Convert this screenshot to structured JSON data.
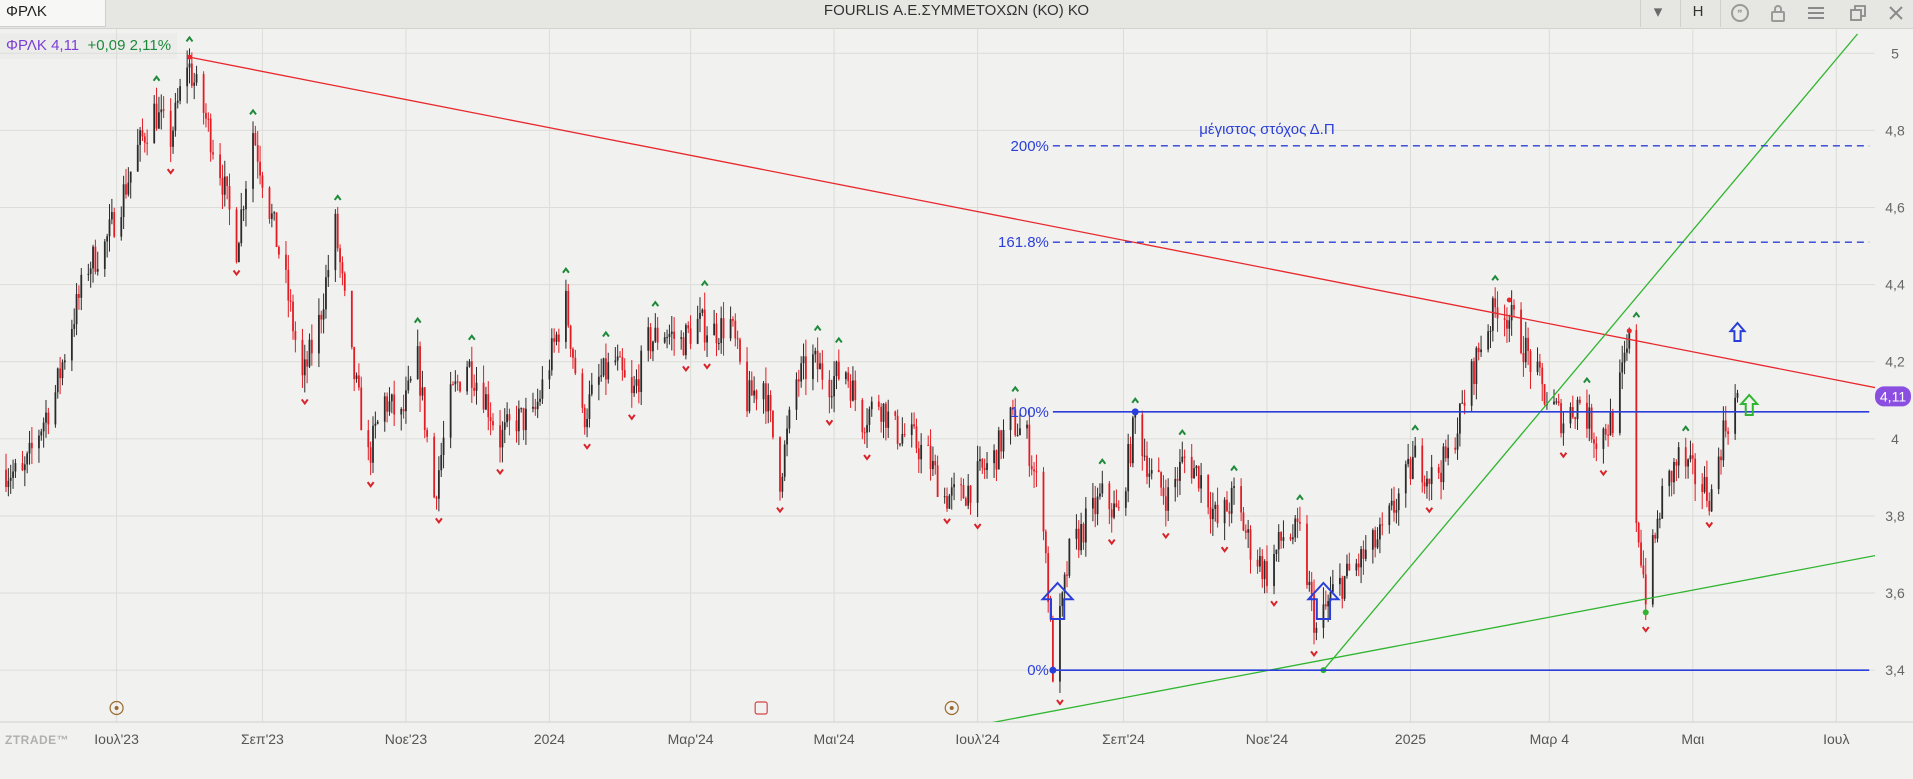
{
  "window": {
    "symbol": "ΦΡΛΚ",
    "title": "FOURLIS Α.Ε.ΣΥΜΜΕΤΟΧΩΝ (ΚΟ) ΚΟ",
    "toolbar_items": [
      {
        "name": "dropdown-icon",
        "glyph": "▾"
      },
      {
        "name": "interval-button",
        "glyph": "H"
      },
      {
        "name": "quote-icon",
        "glyph": "❞"
      },
      {
        "name": "lock-icon",
        "glyph": ""
      },
      {
        "name": "menu-icon",
        "glyph": "☰"
      },
      {
        "name": "restore-icon",
        "glyph": "❐"
      },
      {
        "name": "close-icon",
        "glyph": "✕"
      }
    ]
  },
  "quote": {
    "symbol": "ΦΡΛΚ",
    "last": "4,11",
    "change": "+0,09",
    "change_pct": "2,11%"
  },
  "watermark": "ZTRADE™",
  "chart_data": {
    "type": "candlestick",
    "x_start": "2023-05-15",
    "x_end": "2025-07-20",
    "ylim": [
      3.25,
      5.05
    ],
    "yticks": [
      {
        "value": 5.0,
        "label": "5"
      },
      {
        "value": 4.8,
        "label": "4,8"
      },
      {
        "value": 4.6,
        "label": "4,6"
      },
      {
        "value": 4.4,
        "label": "4,4"
      },
      {
        "value": 4.2,
        "label": "4,2"
      },
      {
        "value": 4.0,
        "label": "4"
      },
      {
        "value": 3.8,
        "label": "3,8"
      },
      {
        "value": 3.6,
        "label": "3,6"
      },
      {
        "value": 3.4,
        "label": "3,4"
      }
    ],
    "xticks": [
      {
        "date": "2023-07-01",
        "label": "Ιουλ'23"
      },
      {
        "date": "2023-09-01",
        "label": "Σεπ'23"
      },
      {
        "date": "2023-11-01",
        "label": "Νοε'23"
      },
      {
        "date": "2024-01-01",
        "label": "2024"
      },
      {
        "date": "2024-03-01",
        "label": "Μαρ'24"
      },
      {
        "date": "2024-05-01",
        "label": "Μαι'24"
      },
      {
        "date": "2024-07-01",
        "label": "Ιουλ'24"
      },
      {
        "date": "2024-09-01",
        "label": "Σεπ'24"
      },
      {
        "date": "2024-11-01",
        "label": "Νοε'24"
      },
      {
        "date": "2025-01-01",
        "label": "2025"
      },
      {
        "date": "2025-03-01",
        "label": "Μαρ 4"
      },
      {
        "date": "2025-05-01",
        "label": "Μαι"
      },
      {
        "date": "2025-07-01",
        "label": "Ιουλ"
      }
    ],
    "grid": true,
    "last_price": {
      "value": 4.11,
      "label": "4,11"
    },
    "price_path": [
      [
        "2023-05-15",
        3.92
      ],
      [
        "2023-05-22",
        3.9
      ],
      [
        "2023-05-29",
        4.02
      ],
      [
        "2023-06-05",
        4.12
      ],
      [
        "2023-06-12",
        4.3
      ],
      [
        "2023-06-19",
        4.45
      ],
      [
        "2023-06-26",
        4.5
      ],
      [
        "2023-07-03",
        4.62
      ],
      [
        "2023-07-10",
        4.75
      ],
      [
        "2023-07-17",
        4.85
      ],
      [
        "2023-07-24",
        4.78
      ],
      [
        "2023-07-31",
        4.98
      ],
      [
        "2023-08-07",
        4.85
      ],
      [
        "2023-08-14",
        4.7
      ],
      [
        "2023-08-21",
        4.5
      ],
      [
        "2023-08-28",
        4.8
      ],
      [
        "2023-09-04",
        4.6
      ],
      [
        "2023-09-11",
        4.4
      ],
      [
        "2023-09-18",
        4.15
      ],
      [
        "2023-09-25",
        4.3
      ],
      [
        "2023-10-02",
        4.55
      ],
      [
        "2023-10-09",
        4.2
      ],
      [
        "2023-10-16",
        3.95
      ],
      [
        "2023-10-23",
        4.1
      ],
      [
        "2023-10-30",
        4.05
      ],
      [
        "2023-11-06",
        4.2
      ],
      [
        "2023-11-13",
        3.85
      ],
      [
        "2023-11-20",
        4.1
      ],
      [
        "2023-11-27",
        4.2
      ],
      [
        "2023-12-04",
        4.12
      ],
      [
        "2023-12-11",
        4.0
      ],
      [
        "2023-12-18",
        4.05
      ],
      [
        "2023-12-25",
        4.05
      ],
      [
        "2024-01-01",
        4.2
      ],
      [
        "2024-01-08",
        4.35
      ],
      [
        "2024-01-15",
        4.05
      ],
      [
        "2024-01-22",
        4.15
      ],
      [
        "2024-01-29",
        4.2
      ],
      [
        "2024-02-05",
        4.1
      ],
      [
        "2024-02-12",
        4.25
      ],
      [
        "2024-02-19",
        4.28
      ],
      [
        "2024-02-26",
        4.25
      ],
      [
        "2024-03-04",
        4.3
      ],
      [
        "2024-03-11",
        4.28
      ],
      [
        "2024-03-18",
        4.3
      ],
      [
        "2024-03-25",
        4.1
      ],
      [
        "2024-04-01",
        4.15
      ],
      [
        "2024-04-08",
        3.9
      ],
      [
        "2024-04-15",
        4.15
      ],
      [
        "2024-04-22",
        4.2
      ],
      [
        "2024-04-29",
        4.15
      ],
      [
        "2024-05-06",
        4.18
      ],
      [
        "2024-05-13",
        4.05
      ],
      [
        "2024-05-20",
        4.1
      ],
      [
        "2024-05-27",
        4.02
      ],
      [
        "2024-06-03",
        4.0
      ],
      [
        "2024-06-10",
        3.95
      ],
      [
        "2024-06-17",
        3.85
      ],
      [
        "2024-06-24",
        3.85
      ],
      [
        "2024-07-01",
        3.9
      ],
      [
        "2024-07-08",
        3.95
      ],
      [
        "2024-07-15",
        4.05
      ],
      [
        "2024-07-22",
        4.0
      ],
      [
        "2024-07-29",
        3.8
      ],
      [
        "2024-08-02",
        3.4
      ],
      [
        "2024-08-09",
        3.7
      ],
      [
        "2024-08-16",
        3.78
      ],
      [
        "2024-08-23",
        3.85
      ],
      [
        "2024-08-30",
        3.8
      ],
      [
        "2024-09-06",
        4.05
      ],
      [
        "2024-09-13",
        3.9
      ],
      [
        "2024-09-20",
        3.85
      ],
      [
        "2024-09-27",
        3.95
      ],
      [
        "2024-10-04",
        3.9
      ],
      [
        "2024-10-11",
        3.78
      ],
      [
        "2024-10-18",
        3.85
      ],
      [
        "2024-10-25",
        3.72
      ],
      [
        "2024-11-01",
        3.65
      ],
      [
        "2024-11-08",
        3.75
      ],
      [
        "2024-11-15",
        3.75
      ],
      [
        "2024-11-22",
        3.5
      ],
      [
        "2024-11-29",
        3.6
      ],
      [
        "2024-12-06",
        3.65
      ],
      [
        "2024-12-13",
        3.7
      ],
      [
        "2024-12-20",
        3.75
      ],
      [
        "2024-12-27",
        3.85
      ],
      [
        "2025-01-03",
        3.95
      ],
      [
        "2025-01-10",
        3.9
      ],
      [
        "2025-01-17",
        3.95
      ],
      [
        "2025-01-24",
        4.1
      ],
      [
        "2025-01-31",
        4.25
      ],
      [
        "2025-02-07",
        4.35
      ],
      [
        "2025-02-14",
        4.3
      ],
      [
        "2025-02-21",
        4.2
      ],
      [
        "2025-02-28",
        4.1
      ],
      [
        "2025-03-07",
        4.05
      ],
      [
        "2025-03-14",
        4.1
      ],
      [
        "2025-03-21",
        4.0
      ],
      [
        "2025-03-28",
        4.05
      ],
      [
        "2025-04-04",
        4.25
      ],
      [
        "2025-04-07",
        3.8
      ],
      [
        "2025-04-11",
        3.6
      ],
      [
        "2025-04-18",
        3.85
      ],
      [
        "2025-04-25",
        3.95
      ],
      [
        "2025-05-02",
        3.9
      ],
      [
        "2025-05-09",
        3.85
      ],
      [
        "2025-05-14",
        4.02
      ],
      [
        "2025-05-20",
        4.11
      ]
    ],
    "trendlines": [
      {
        "name": "down-trendline",
        "color": "#e8282d",
        "from": [
          "2023-08-01",
          4.99
        ],
        "to": [
          "2025-07-20",
          4.13
        ]
      },
      {
        "name": "support-trendline",
        "color": "#2fb52f",
        "from": [
          "2024-06-25",
          3.25
        ],
        "to": [
          "2025-07-20",
          3.7
        ]
      },
      {
        "name": "steep-uptrend-line",
        "color": "#2fb52f",
        "from": [
          "2024-11-25",
          3.4
        ],
        "to": [
          "2025-07-10",
          5.05
        ]
      }
    ],
    "levels": [
      {
        "label": "200%",
        "value": 4.76,
        "color": "#2a3fd9",
        "style": "dashed"
      },
      {
        "label": "161.8%",
        "value": 4.51,
        "color": "#2a3fd9",
        "style": "dashed"
      },
      {
        "label": "100%",
        "value": 4.07,
        "color": "#2a3fd9",
        "style": "solid"
      },
      {
        "label": "0%",
        "value": 3.4,
        "color": "#2a3fd9",
        "style": "solid"
      }
    ],
    "annotations": [
      {
        "text": "μέγιστος στόχος Δ.Π",
        "color": "#2a3fd9"
      }
    ]
  }
}
